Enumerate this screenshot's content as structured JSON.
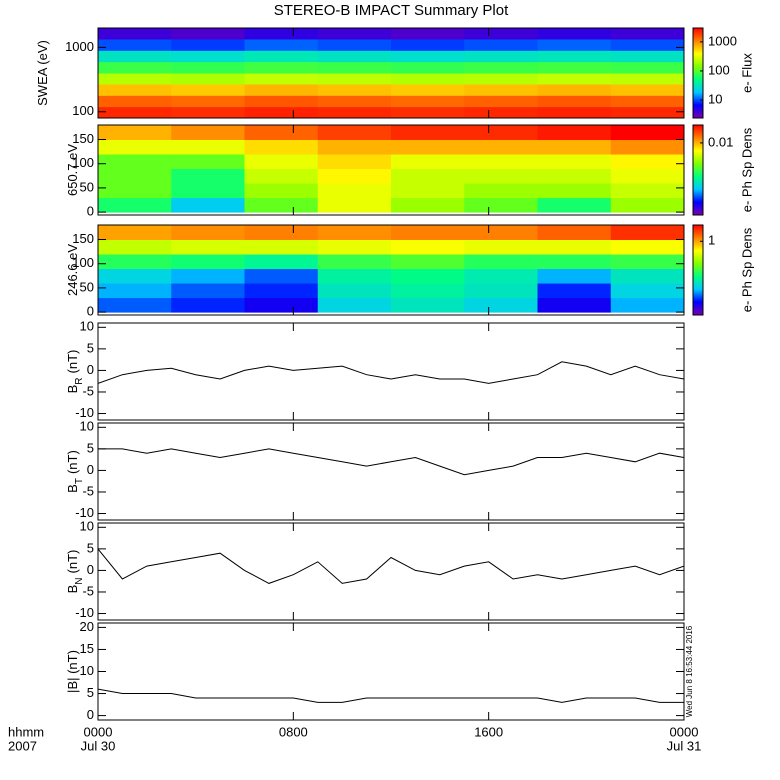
{
  "title": "STEREO-B IMPACT Summary Plot",
  "time_label": "hhmm",
  "year_label": "2007",
  "chart_data": [
    {
      "type": "heatmap",
      "ylabel": "SWEA (eV)",
      "ylog": true,
      "ylim": [
        80,
        2000
      ],
      "yticks": [
        100,
        1000
      ],
      "xlim": [
        0,
        24
      ],
      "x_bins": [
        0,
        3,
        6,
        9,
        12,
        15,
        18,
        21,
        24
      ],
      "y_bins": [
        80,
        120,
        180,
        270,
        400,
        600,
        900,
        1350,
        2000
      ],
      "z": [
        [
          2200,
          2100,
          2300,
          2200,
          2100,
          2200,
          2300,
          2200
        ],
        [
          1400,
          1300,
          1500,
          1400,
          1300,
          1400,
          1500,
          1400
        ],
        [
          650,
          600,
          700,
          650,
          600,
          650,
          700,
          650
        ],
        [
          220,
          200,
          240,
          230,
          210,
          220,
          240,
          230
        ],
        [
          80,
          75,
          85,
          80,
          75,
          80,
          85,
          80
        ],
        [
          30,
          28,
          33,
          30,
          28,
          30,
          32,
          30
        ],
        [
          10,
          9,
          11,
          10,
          9,
          10,
          11,
          10
        ],
        [
          4,
          3.5,
          4.5,
          4,
          3.5,
          4,
          4.5,
          4
        ]
      ],
      "clog": true,
      "clim": [
        2.4,
        3000
      ],
      "cticks": [
        10,
        100,
        1000
      ],
      "clabel": "e- Flux",
      "colormap": [
        "#7a00b0",
        "#0000ff",
        "#00c8ff",
        "#00ff80",
        "#80ff00",
        "#ffff00",
        "#ff8000",
        "#ff0000"
      ]
    },
    {
      "type": "heatmap",
      "ylabel": "650.7 eV",
      "ylog": false,
      "ylim": [
        -6,
        180
      ],
      "yticks": [
        0,
        50,
        100,
        150
      ],
      "xlim": [
        0,
        24
      ],
      "x_bins": [
        0,
        3,
        6,
        9,
        12,
        15,
        18,
        21,
        24
      ],
      "y_bins": [
        0,
        30,
        60,
        90,
        120,
        150,
        180
      ],
      "z": [
        [
          0.002,
          0.001,
          0.003,
          0.006,
          0.004,
          0.003,
          0.002,
          0.004
        ],
        [
          0.003,
          0.002,
          0.004,
          0.006,
          0.005,
          0.004,
          0.004,
          0.005
        ],
        [
          0.003,
          0.002,
          0.005,
          0.007,
          0.005,
          0.005,
          0.005,
          0.006
        ],
        [
          0.003,
          0.003,
          0.006,
          0.008,
          0.006,
          0.006,
          0.006,
          0.007
        ],
        [
          0.006,
          0.006,
          0.008,
          0.01,
          0.01,
          0.01,
          0.01,
          0.012
        ],
        [
          0.01,
          0.012,
          0.015,
          0.018,
          0.02,
          0.02,
          0.022,
          0.025
        ]
      ],
      "clog": true,
      "clim": [
        0.00025,
        0.025
      ],
      "cticks": [
        0.01
      ],
      "clabel": "e- Ph Sp Dens",
      "colormap": [
        "#7a00b0",
        "#0000ff",
        "#00c8ff",
        "#00ff80",
        "#80ff00",
        "#ffff00",
        "#ff8000",
        "#ff0000"
      ]
    },
    {
      "type": "heatmap",
      "ylabel": "246.6 eV",
      "ylog": false,
      "ylim": [
        -6,
        180
      ],
      "yticks": [
        0,
        50,
        100,
        150
      ],
      "xlim": [
        0,
        24
      ],
      "x_bins": [
        0,
        3,
        6,
        9,
        12,
        15,
        18,
        21,
        24
      ],
      "y_bins": [
        0,
        30,
        60,
        90,
        120,
        150,
        180
      ],
      "z": [
        [
          0.06,
          0.05,
          0.04,
          0.1,
          0.12,
          0.1,
          0.04,
          0.08
        ],
        [
          0.08,
          0.06,
          0.05,
          0.12,
          0.14,
          0.12,
          0.05,
          0.1
        ],
        [
          0.1,
          0.08,
          0.06,
          0.14,
          0.16,
          0.13,
          0.08,
          0.12
        ],
        [
          0.2,
          0.18,
          0.15,
          0.22,
          0.25,
          0.2,
          0.2,
          0.22
        ],
        [
          0.45,
          0.5,
          0.5,
          0.55,
          0.6,
          0.55,
          0.55,
          0.6
        ],
        [
          1,
          1.1,
          1.2,
          1.1,
          1.2,
          1.2,
          1.4,
          1.8
        ]
      ],
      "clog": true,
      "clim": [
        0.023,
        2.3
      ],
      "cticks": [
        1
      ],
      "clabel": "e- Ph Sp Dens",
      "colormap": [
        "#7a00b0",
        "#0000ff",
        "#00c8ff",
        "#00ff80",
        "#80ff00",
        "#ffff00",
        "#ff8000",
        "#ff0000"
      ]
    },
    {
      "type": "line",
      "ylabel": "B",
      "ylabel_sub": "R",
      "ylabel_unit": "(nT)",
      "ylim": [
        -11.5,
        11
      ],
      "yticks": [
        -10,
        -5,
        0,
        5,
        10
      ],
      "xlim": [
        0,
        24
      ],
      "x": [
        0,
        1,
        2,
        3,
        4,
        5,
        6,
        7,
        8,
        9,
        10,
        11,
        12,
        13,
        14,
        15,
        16,
        17,
        18,
        19,
        20,
        21,
        22,
        23,
        24
      ],
      "values": [
        -3,
        -1,
        0,
        0.5,
        -1,
        -2,
        0,
        1,
        0,
        0.5,
        1,
        -1,
        -2,
        -1,
        -2,
        -2,
        -3,
        -2,
        -1,
        2,
        1,
        -1,
        1,
        -1,
        -2
      ],
      "color": "#000000"
    },
    {
      "type": "line",
      "ylabel": "B",
      "ylabel_sub": "T",
      "ylabel_unit": "(nT)",
      "ylim": [
        -11.5,
        11
      ],
      "yticks": [
        -10,
        -5,
        0,
        5,
        10
      ],
      "xlim": [
        0,
        24
      ],
      "x": [
        0,
        1,
        2,
        3,
        4,
        5,
        6,
        7,
        8,
        9,
        10,
        11,
        12,
        13,
        14,
        15,
        16,
        17,
        18,
        19,
        20,
        21,
        22,
        23,
        24
      ],
      "values": [
        5,
        5,
        4,
        5,
        4,
        3,
        4,
        5,
        4,
        3,
        2,
        1,
        2,
        3,
        1,
        -1,
        0,
        1,
        3,
        3,
        4,
        3,
        2,
        4,
        3
      ],
      "color": "#000000"
    },
    {
      "type": "line",
      "ylabel": "B",
      "ylabel_sub": "N",
      "ylabel_unit": "(nT)",
      "ylim": [
        -11.5,
        11
      ],
      "yticks": [
        -10,
        -5,
        0,
        5,
        10
      ],
      "xlim": [
        0,
        24
      ],
      "x": [
        0,
        1,
        2,
        3,
        4,
        5,
        6,
        7,
        8,
        9,
        10,
        11,
        12,
        13,
        14,
        15,
        16,
        17,
        18,
        19,
        20,
        21,
        22,
        23,
        24
      ],
      "values": [
        5,
        -2,
        1,
        2,
        3,
        4,
        0,
        -3,
        -1,
        2,
        -3,
        -2,
        3,
        0,
        -1,
        1,
        2,
        -2,
        -1,
        -2,
        -1,
        0,
        1,
        -1,
        1
      ],
      "color": "#000000"
    },
    {
      "type": "line",
      "ylabel": "|B| (nT)",
      "ylim": [
        -1,
        21
      ],
      "yticks": [
        0,
        5,
        10,
        15,
        20
      ],
      "xlim": [
        0,
        24
      ],
      "x": [
        0,
        1,
        2,
        3,
        4,
        5,
        6,
        7,
        8,
        9,
        10,
        11,
        12,
        13,
        14,
        15,
        16,
        17,
        18,
        19,
        20,
        21,
        22,
        23,
        24
      ],
      "values": [
        6,
        5,
        5,
        5,
        4,
        4,
        4,
        4,
        4,
        3,
        3,
        4,
        4,
        4,
        4,
        4,
        4,
        4,
        4,
        3,
        4,
        4,
        4,
        3,
        3
      ],
      "color": "#000000",
      "xticks": [
        {
          "value": 0,
          "label": "0000"
        },
        {
          "value": 8,
          "label": "0800"
        },
        {
          "value": 16,
          "label": "1600"
        },
        {
          "value": 24,
          "label": "0000"
        }
      ],
      "x_date_labels": [
        {
          "value": 0,
          "label": "Jul 30"
        },
        {
          "value": 24,
          "label": "Jul 31"
        }
      ],
      "timestamp": "Wed Jun  8 16:53:44 2016"
    }
  ]
}
